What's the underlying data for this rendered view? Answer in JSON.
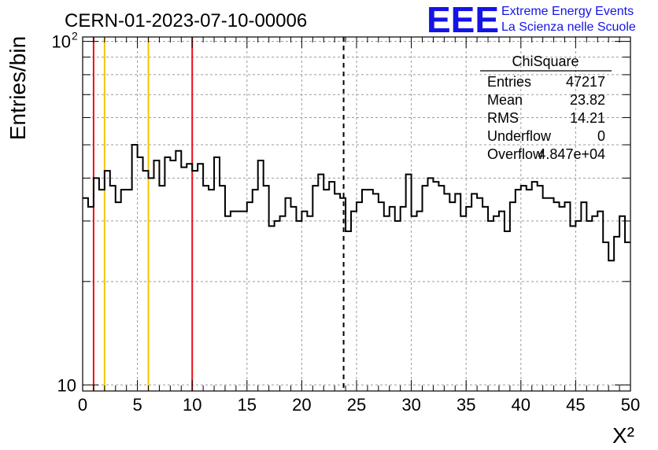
{
  "header": {
    "run_title": "CERN-01-2023-07-10-00006",
    "logo_text": "EEE",
    "org_line1": "Extreme Energy Events",
    "org_line2": "La Scienza nelle Scuole"
  },
  "stats_box": {
    "title": "ChiSquare",
    "rows": [
      {
        "label": "Entries",
        "value": "47217"
      },
      {
        "label": "Mean",
        "value": "23.82"
      },
      {
        "label": "RMS",
        "value": "14.21"
      },
      {
        "label": "Underflow",
        "value": "0"
      },
      {
        "label": "Overflow",
        "value": "4.847e+04"
      }
    ]
  },
  "colors": {
    "histogram": "#000000",
    "red_line": "#e8101a",
    "yellow_line": "#f5c400",
    "mean_line": "#000000",
    "logo_blue": "#1414e6",
    "grid": "#9a9a9a"
  },
  "chart_data": {
    "type": "histogram",
    "title": "CERN-01-2023-07-10-00006",
    "xlabel": "X²",
    "ylabel": "Entries/bin",
    "xlim": [
      0,
      50
    ],
    "ylim": [
      9.6,
      103
    ],
    "y_scale": "log",
    "grid": true,
    "x_ticks": [
      0,
      5,
      10,
      15,
      20,
      25,
      30,
      35,
      40,
      45,
      50
    ],
    "y_tick_labels": [
      {
        "value": 100,
        "base": "10",
        "exp": "2"
      },
      {
        "value": 10,
        "base": "10",
        "exp": ""
      }
    ],
    "bin_width": 0.5,
    "bin_start": 0,
    "values": [
      35,
      33,
      40,
      37,
      42,
      38,
      34,
      37,
      37,
      50,
      46,
      42,
      40,
      45,
      38,
      46,
      45,
      48,
      43,
      44,
      42,
      44,
      38,
      37,
      46,
      38,
      31,
      32,
      32,
      32,
      34,
      37,
      45,
      38,
      29,
      30,
      31,
      35,
      33,
      30,
      32,
      31,
      38,
      41,
      37,
      39,
      36,
      35,
      28,
      32,
      34,
      37,
      37,
      36,
      34,
      31,
      33,
      30,
      33,
      41,
      31,
      32,
      38,
      40,
      39,
      38,
      36,
      34,
      36,
      31,
      33,
      36,
      35,
      33,
      30,
      31,
      32,
      28,
      34,
      37,
      38,
      37,
      39,
      38,
      35,
      35,
      34,
      33,
      34,
      29,
      30,
      34,
      30,
      31,
      32,
      26,
      23,
      27,
      31,
      26
    ],
    "vertical_lines": [
      {
        "x": 1,
        "color": "red",
        "style": "solid"
      },
      {
        "x": 2,
        "color": "yellow",
        "style": "solid"
      },
      {
        "x": 6,
        "color": "yellow",
        "style": "solid"
      },
      {
        "x": 10,
        "color": "red",
        "style": "solid"
      },
      {
        "x": 23.82,
        "color": "black",
        "style": "dashed"
      }
    ],
    "legend": "top-right stats box"
  }
}
